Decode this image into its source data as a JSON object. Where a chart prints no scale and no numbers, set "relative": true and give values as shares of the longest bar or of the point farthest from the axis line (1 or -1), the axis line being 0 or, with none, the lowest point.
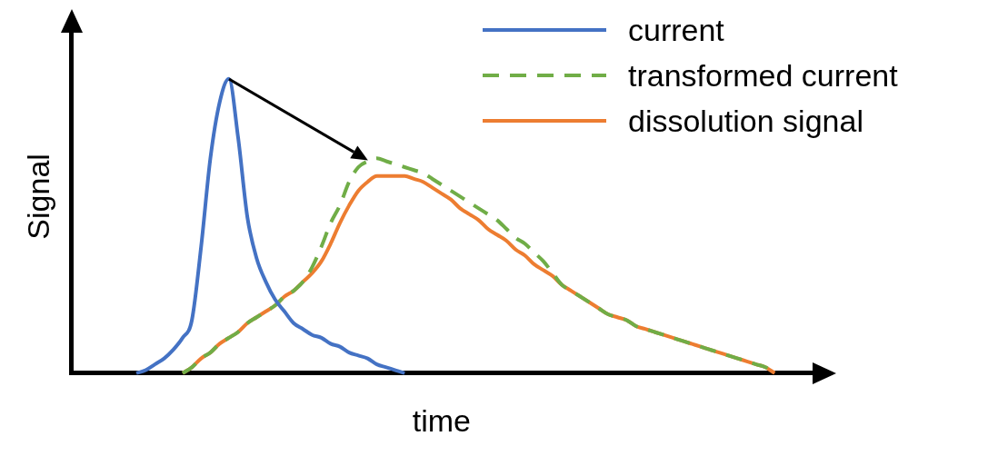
{
  "chart_data": {
    "type": "line",
    "relative": true,
    "xlabel": "time",
    "ylabel": "Signal",
    "legend": "top right",
    "grid": false,
    "marker": "none",
    "categories": [
      null,
      null,
      null,
      null,
      null,
      null,
      null,
      null,
      null,
      null,
      null,
      null,
      null,
      null,
      null,
      null,
      null,
      null,
      null,
      null,
      null,
      null,
      null,
      null,
      null,
      null,
      null,
      null,
      null,
      null,
      null,
      null,
      null,
      null,
      null,
      null,
      null,
      null,
      null,
      null,
      null,
      null,
      null,
      null,
      null,
      null,
      null,
      null,
      null,
      null,
      null,
      null,
      null,
      null,
      null,
      null,
      null,
      null,
      null,
      null,
      null,
      null,
      null,
      null,
      null,
      null,
      null,
      null,
      null,
      null,
      null,
      null,
      null,
      null,
      null,
      null,
      null,
      null,
      null,
      null,
      null
    ],
    "series": [
      {
        "name": "current",
        "color": "#4472c4",
        "line_style": "solid",
        "values": [
          null,
          null,
          null,
          null,
          null,
          null,
          null,
          0,
          0.01,
          0.03,
          0.05,
          0.08,
          0.12,
          0.18,
          0.43,
          0.73,
          0.92,
          1,
          0.8,
          0.53,
          0.39,
          0.31,
          0.25,
          0.21,
          0.17,
          0.15,
          0.13,
          0.12,
          0.1,
          0.09,
          0.07,
          0.06,
          0.05,
          0.03,
          0.02,
          0.01,
          0,
          null,
          null,
          null,
          null,
          null,
          null,
          null,
          null,
          null,
          null,
          null,
          null,
          null,
          null,
          null,
          null,
          null,
          null,
          null,
          null,
          null,
          null,
          null,
          null,
          null,
          null,
          null,
          null,
          null,
          null,
          null,
          null,
          null,
          null,
          null,
          null,
          null,
          null,
          null,
          null,
          null,
          null,
          null,
          null
        ]
      },
      {
        "name": "transformed current",
        "color": "#70ad47",
        "line_style": "dashed",
        "values": [
          null,
          null,
          null,
          null,
          null,
          null,
          null,
          null,
          null,
          null,
          null,
          null,
          0,
          0.02,
          0.05,
          0.07,
          0.1,
          0.12,
          0.14,
          0.17,
          0.19,
          0.21,
          0.23,
          0.26,
          0.28,
          0.31,
          0.36,
          0.43,
          0.51,
          0.57,
          0.65,
          0.7,
          0.72,
          0.73,
          0.72,
          0.71,
          0.7,
          0.69,
          0.68,
          0.66,
          0.64,
          0.62,
          0.6,
          0.58,
          0.56,
          0.54,
          0.52,
          0.49,
          0.46,
          0.44,
          0.41,
          0.38,
          0.34,
          0.3,
          0.28,
          0.26,
          0.24,
          0.22,
          0.2,
          0.19,
          0.18,
          0.16,
          0.15,
          0.14,
          0.13,
          0.12,
          0.11,
          0.1,
          0.09,
          0.08,
          0.07,
          0.06,
          0.05,
          0.04,
          0.03,
          0.02,
          0,
          null,
          null,
          null,
          null
        ]
      },
      {
        "name": "dissolution signal",
        "color": "#ed7d31",
        "line_style": "solid",
        "values": [
          null,
          null,
          null,
          null,
          null,
          null,
          null,
          null,
          null,
          null,
          null,
          null,
          0,
          0.02,
          0.05,
          0.07,
          0.1,
          0.12,
          0.14,
          0.17,
          0.19,
          0.21,
          0.23,
          0.26,
          0.28,
          0.31,
          0.34,
          0.38,
          0.44,
          0.51,
          0.57,
          0.62,
          0.65,
          0.67,
          0.67,
          0.67,
          0.67,
          0.66,
          0.65,
          0.63,
          0.61,
          0.59,
          0.56,
          0.54,
          0.52,
          0.49,
          0.47,
          0.45,
          0.42,
          0.4,
          0.37,
          0.35,
          0.33,
          0.3,
          0.28,
          0.26,
          0.24,
          0.22,
          0.2,
          0.19,
          0.18,
          0.16,
          0.15,
          0.14,
          0.13,
          0.12,
          0.11,
          0.1,
          0.09,
          0.08,
          0.07,
          0.06,
          0.05,
          0.04,
          0.03,
          0.02,
          0,
          null,
          null,
          null,
          null
        ]
      }
    ]
  }
}
